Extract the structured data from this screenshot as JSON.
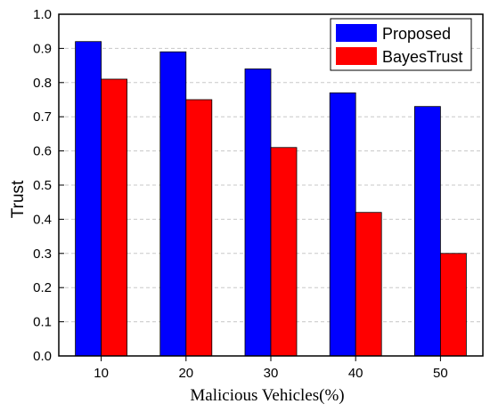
{
  "chart_data": {
    "type": "bar",
    "categories": [
      "10",
      "20",
      "30",
      "40",
      "50"
    ],
    "series": [
      {
        "name": "Proposed",
        "values": [
          0.92,
          0.89,
          0.84,
          0.77,
          0.73
        ],
        "color": "#0000ff"
      },
      {
        "name": "BayesTrust",
        "values": [
          0.81,
          0.75,
          0.61,
          0.42,
          0.3
        ],
        "color": "#ff0000"
      }
    ],
    "xlabel": "Malicious Vehicles(%)",
    "ylabel": "Trust",
    "ylim": [
      0,
      1.0
    ],
    "yticks": [
      "0.0",
      "0.1",
      "0.2",
      "0.3",
      "0.4",
      "0.5",
      "0.6",
      "0.7",
      "0.8",
      "0.9",
      "1.0"
    ],
    "grid": true,
    "legend_position": "top-right"
  }
}
